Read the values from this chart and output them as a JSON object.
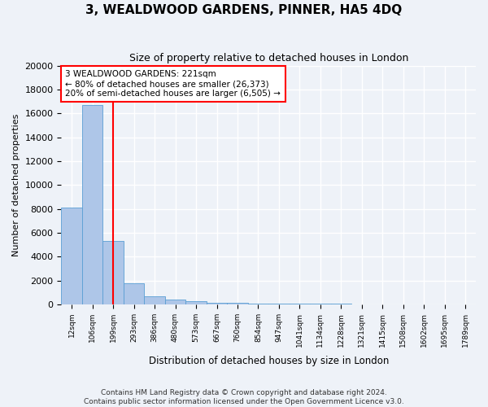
{
  "title": "3, WEALDWOOD GARDENS, PINNER, HA5 4DQ",
  "subtitle": "Size of property relative to detached houses in London",
  "xlabel": "Distribution of detached houses by size in London",
  "ylabel": "Number of detached properties",
  "bar_values": [
    8100,
    16700,
    5300,
    1750,
    700,
    380,
    260,
    170,
    130,
    100,
    80,
    60,
    50,
    40,
    30,
    25,
    20,
    15,
    12,
    10
  ],
  "bin_labels": [
    "12sqm",
    "106sqm",
    "199sqm",
    "293sqm",
    "386sqm",
    "480sqm",
    "573sqm",
    "667sqm",
    "760sqm",
    "854sqm",
    "947sqm",
    "1041sqm",
    "1134sqm",
    "1228sqm",
    "1321sqm",
    "1415sqm",
    "1508sqm",
    "1602sqm",
    "1695sqm",
    "1789sqm"
  ],
  "bar_color": "#aec6e8",
  "bar_edge_color": "#5a9fd4",
  "vline_x": 2,
  "vline_color": "red",
  "annotation_text": "3 WEALDWOOD GARDENS: 221sqm\n← 80% of detached houses are smaller (26,373)\n20% of semi-detached houses are larger (6,505) →",
  "annotation_box_color": "white",
  "annotation_box_edge": "red",
  "ylim": [
    0,
    20000
  ],
  "yticks": [
    0,
    2000,
    4000,
    6000,
    8000,
    10000,
    12000,
    14000,
    16000,
    18000,
    20000
  ],
  "footer_line1": "Contains HM Land Registry data © Crown copyright and database right 2024.",
  "footer_line2": "Contains public sector information licensed under the Open Government Licence v3.0.",
  "background_color": "#eef2f8",
  "grid_color": "white"
}
